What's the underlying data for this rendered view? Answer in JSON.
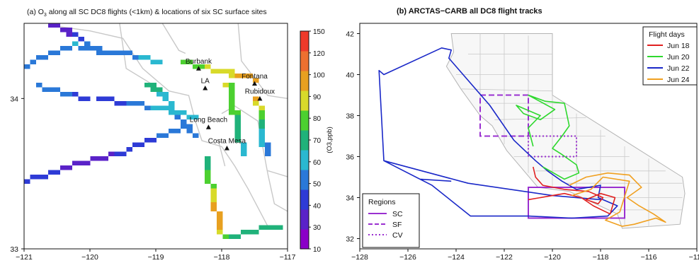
{
  "chart_data": [
    {
      "type": "heatmap",
      "title_prefix": "(a) O",
      "title_sub": "3",
      "title_suffix": " along all SC DC8 flights (<1km) & locations of six SC surface sites",
      "xlim": [
        -121,
        -117
      ],
      "ylim": [
        33,
        34.5
      ],
      "x_ticks": [
        "−121",
        "−120",
        "−119",
        "−118",
        "−117"
      ],
      "y_ticks": [
        "33",
        "34"
      ],
      "colorbar": {
        "label": "(O3,ppb)",
        "ticks": [
          10,
          30,
          40,
          50,
          60,
          70,
          80,
          90,
          100,
          120,
          150
        ],
        "colors": [
          "#8B00C8",
          "#5A22C8",
          "#2E3BD6",
          "#2A78D8",
          "#2AB8D0",
          "#20B27A",
          "#4CD030",
          "#D8DA2A",
          "#E8A020",
          "#EC7030",
          "#EE3A2A"
        ]
      },
      "sites": [
        {
          "name": "Burbank",
          "lon": -118.35,
          "lat": 34.2
        },
        {
          "name": "LA",
          "lon": -118.25,
          "lat": 34.07
        },
        {
          "name": "Fontana",
          "lon": -117.5,
          "lat": 34.1
        },
        {
          "name": "Rubidoux",
          "lon": -117.42,
          "lat": 34.0
        },
        {
          "name": "Long Beach",
          "lon": -118.2,
          "lat": 33.81
        },
        {
          "name": "Costa Mesa",
          "lon": -117.92,
          "lat": 33.67
        }
      ],
      "flights": [
        {
          "lon": [
            -120.55,
            -120.2,
            -120.0,
            -119.8
          ],
          "lat": [
            34.5,
            34.42,
            34.35,
            34.3
          ],
          "o3": [
            30,
            40,
            50,
            55
          ]
        },
        {
          "lon": [
            -121.0,
            -120.6,
            -120.2,
            -119.9,
            -119.5,
            -119.2,
            -118.9
          ],
          "lat": [
            34.2,
            34.3,
            34.35,
            34.32,
            34.3,
            34.28,
            34.22
          ],
          "o3": [
            50,
            55,
            60,
            50,
            55,
            60,
            65
          ]
        },
        {
          "lon": [
            -120.8,
            -120.3,
            -119.8,
            -119.4,
            -119.0,
            -118.6,
            -118.3
          ],
          "lat": [
            34.08,
            34.02,
            34.0,
            33.97,
            33.94,
            33.9,
            33.87
          ],
          "o3": [
            55,
            50,
            45,
            50,
            60,
            70,
            60
          ]
        },
        {
          "lon": [
            -121.0,
            -120.5,
            -120.0,
            -119.6,
            -119.2,
            -118.9,
            -118.6
          ],
          "lat": [
            33.45,
            33.52,
            33.58,
            33.63,
            33.7,
            33.76,
            33.8
          ],
          "o3": [
            45,
            40,
            35,
            40,
            45,
            50,
            50
          ]
        },
        {
          "lon": [
            -119.1,
            -118.95,
            -118.8,
            -118.7,
            -118.55,
            -118.4
          ],
          "lat": [
            34.1,
            34.05,
            33.98,
            33.9,
            33.82,
            33.75
          ],
          "o3": [
            75,
            70,
            65,
            60,
            55,
            50
          ]
        },
        {
          "lon": [
            -118.6,
            -118.4,
            -118.2,
            -118.0,
            -117.8,
            -117.6,
            -117.4
          ],
          "lat": [
            34.25,
            34.22,
            34.2,
            34.18,
            34.16,
            34.14,
            34.12
          ],
          "o3": [
            80,
            85,
            90,
            95,
            100,
            110,
            120
          ]
        },
        {
          "lon": [
            -117.9,
            -117.85,
            -117.8,
            -117.75,
            -117.7,
            -117.65
          ],
          "lat": [
            34.1,
            34.0,
            33.9,
            33.8,
            33.7,
            33.6
          ],
          "o3": [
            90,
            85,
            80,
            75,
            70,
            65
          ]
        },
        {
          "lon": [
            -117.45,
            -117.42,
            -117.4,
            -117.35,
            -117.3
          ],
          "lat": [
            34.0,
            33.9,
            33.8,
            33.7,
            33.6
          ],
          "o3": [
            100,
            85,
            70,
            60,
            55
          ]
        },
        {
          "lon": [
            -118.25,
            -118.2,
            -118.15,
            -118.1,
            -118.05,
            -118.0
          ],
          "lat": [
            33.6,
            33.5,
            33.4,
            33.3,
            33.2,
            33.1
          ],
          "o3": [
            75,
            80,
            90,
            100,
            110,
            95
          ]
        },
        {
          "lon": [
            -117.9,
            -117.7,
            -117.5,
            -117.3,
            -117.1
          ],
          "lat": [
            33.08,
            33.1,
            33.12,
            33.14,
            33.15
          ],
          "o3": [
            80,
            75,
            70,
            75,
            80
          ]
        }
      ]
    },
    {
      "type": "line",
      "title": "(b) ARCTAS−CARB all DC8 flight tracks",
      "xlim": [
        -128,
        -114
      ],
      "ylim": [
        31.5,
        42.5
      ],
      "x_ticks": [
        "−128",
        "−126",
        "−124",
        "−122",
        "−120",
        "−118",
        "−116",
        "−114"
      ],
      "y_ticks": [
        "32",
        "34",
        "36",
        "38",
        "40",
        "42"
      ],
      "legend": {
        "title": "Flight days",
        "position": "top-right",
        "items": [
          {
            "label": "Jun 18",
            "color": "#E02020"
          },
          {
            "label": "Jun 20",
            "color": "#2ED82E"
          },
          {
            "label": "Jun 22",
            "color": "#1A28C8"
          },
          {
            "label": "Jun 24",
            "color": "#F0A020"
          }
        ]
      },
      "regions_legend": {
        "title": "Regions",
        "position": "bottom-left",
        "items": [
          {
            "label": "SC",
            "style": "solid",
            "color": "#9A30D0"
          },
          {
            "label": "SF",
            "style": "dashed",
            "color": "#9A30D0"
          },
          {
            "label": "CV",
            "style": "dotted",
            "color": "#9A30D0"
          }
        ]
      },
      "regions": [
        {
          "name": "SC",
          "lon": [
            -121,
            -117
          ],
          "lat": [
            33,
            34.5
          ]
        },
        {
          "name": "SF",
          "lon": [
            -123,
            -121
          ],
          "lat": [
            37,
            39
          ]
        },
        {
          "name": "CV",
          "lon": [
            -121,
            -119
          ],
          "lat": [
            36,
            37
          ]
        }
      ],
      "series": [
        {
          "name": "Jun 22",
          "lon": [
            -118.0,
            -120.0,
            -123.5,
            -127.0,
            -127.2,
            -127.0,
            -124.6,
            -124.2,
            -124.3,
            -122.6,
            -121.6,
            -120.7,
            -120.2,
            -119.6,
            -119.0,
            -118.0,
            -118.1,
            -117.3,
            -117.7,
            -119.2,
            -121.0,
            -122.5,
            -123.4,
            -125.0,
            -127.0,
            -127.0,
            -125.5,
            -124.2
          ],
          "lat": [
            33.9,
            34.1,
            34.7,
            35.8,
            40.2,
            40.0,
            41.3,
            41.2,
            40.8,
            38.5,
            36.8,
            35.8,
            35.3,
            34.8,
            34.4,
            34.6,
            34.0,
            33.6,
            33.1,
            33.0,
            33.1,
            33.1,
            33.1,
            34.6,
            35.8,
            35.8,
            34.9,
            34.8
          ]
        },
        {
          "name": "Jun 20",
          "lon": [
            -120.8,
            -121.0,
            -120.5,
            -121.5,
            -121.2,
            -120.5,
            -119.9,
            -121.0,
            -120.3,
            -119.5,
            -119.3,
            -119.6,
            -120.0,
            -119.6,
            -119.0,
            -118.9,
            -119.5,
            -120.4
          ],
          "lat": [
            36.5,
            37.4,
            38.0,
            38.5,
            38.1,
            37.8,
            38.3,
            39.0,
            38.7,
            38.6,
            37.5,
            37.0,
            36.4,
            36.1,
            35.6,
            35.2,
            34.9,
            35.5
          ]
        },
        {
          "name": "Jun 18",
          "lon": [
            -120.8,
            -120.7,
            -120.4,
            -119.5,
            -118.5,
            -117.9,
            -118.1,
            -118.6,
            -118.0,
            -117.4,
            -117.6,
            -118.3,
            -118.8,
            -119.5,
            -120.0,
            -121.0
          ],
          "lat": [
            35.5,
            35.0,
            34.6,
            34.4,
            34.3,
            34.0,
            33.7,
            33.9,
            34.2,
            34.0,
            33.2,
            33.6,
            34.0,
            34.2,
            34.1,
            33.9
          ]
        },
        {
          "name": "Jun 24",
          "lon": [
            -119.3,
            -118.6,
            -117.7,
            -116.8,
            -116.3,
            -116.9,
            -116.4,
            -115.8,
            -115.3,
            -115.7,
            -116.6,
            -117.1,
            -117.8,
            -117.2,
            -116.8,
            -117.9,
            -118.4,
            -119.2
          ],
          "lat": [
            34.6,
            35.0,
            35.2,
            35.1,
            34.5,
            34.0,
            33.6,
            33.2,
            32.8,
            33.0,
            32.7,
            32.6,
            32.9,
            33.3,
            34.8,
            35.0,
            34.4,
            34.1
          ]
        }
      ]
    }
  ]
}
